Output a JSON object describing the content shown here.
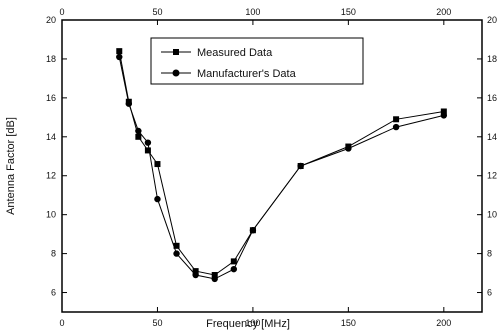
{
  "chart_data": {
    "type": "line",
    "title": "",
    "xlabel": "Frequency [MHz]",
    "ylabel": "Antenna Factor [dB]",
    "xlim": [
      0,
      220
    ],
    "ylim": [
      5,
      20
    ],
    "x_ticks": [
      "0",
      "50",
      "100",
      "150",
      "200"
    ],
    "x_tick_values": [
      0,
      50,
      100,
      150,
      200
    ],
    "y_ticks": [
      "6",
      "8",
      "10",
      "12",
      "14",
      "16",
      "18",
      "20"
    ],
    "y_tick_values": [
      6,
      8,
      10,
      12,
      14,
      16,
      18,
      20
    ],
    "grid": false,
    "legend_position": "top-center",
    "series": [
      {
        "name": "Measured Data",
        "marker": "square",
        "color": "#000000",
        "x": [
          30,
          35,
          40,
          45,
          50,
          60,
          70,
          80,
          90,
          100,
          125,
          150,
          175,
          200
        ],
        "y": [
          18.4,
          15.8,
          14.0,
          13.3,
          12.6,
          8.4,
          7.1,
          6.9,
          7.6,
          9.2,
          12.5,
          13.5,
          14.9,
          15.3
        ]
      },
      {
        "name": "Manufacturer's Data",
        "marker": "circle",
        "color": "#000000",
        "x": [
          30,
          35,
          40,
          45,
          50,
          60,
          70,
          80,
          90,
          100,
          125,
          150,
          175,
          200
        ],
        "y": [
          18.1,
          15.7,
          14.3,
          13.7,
          10.8,
          8.0,
          6.9,
          6.7,
          7.2,
          9.2,
          12.5,
          13.4,
          14.5,
          15.1
        ]
      }
    ]
  }
}
